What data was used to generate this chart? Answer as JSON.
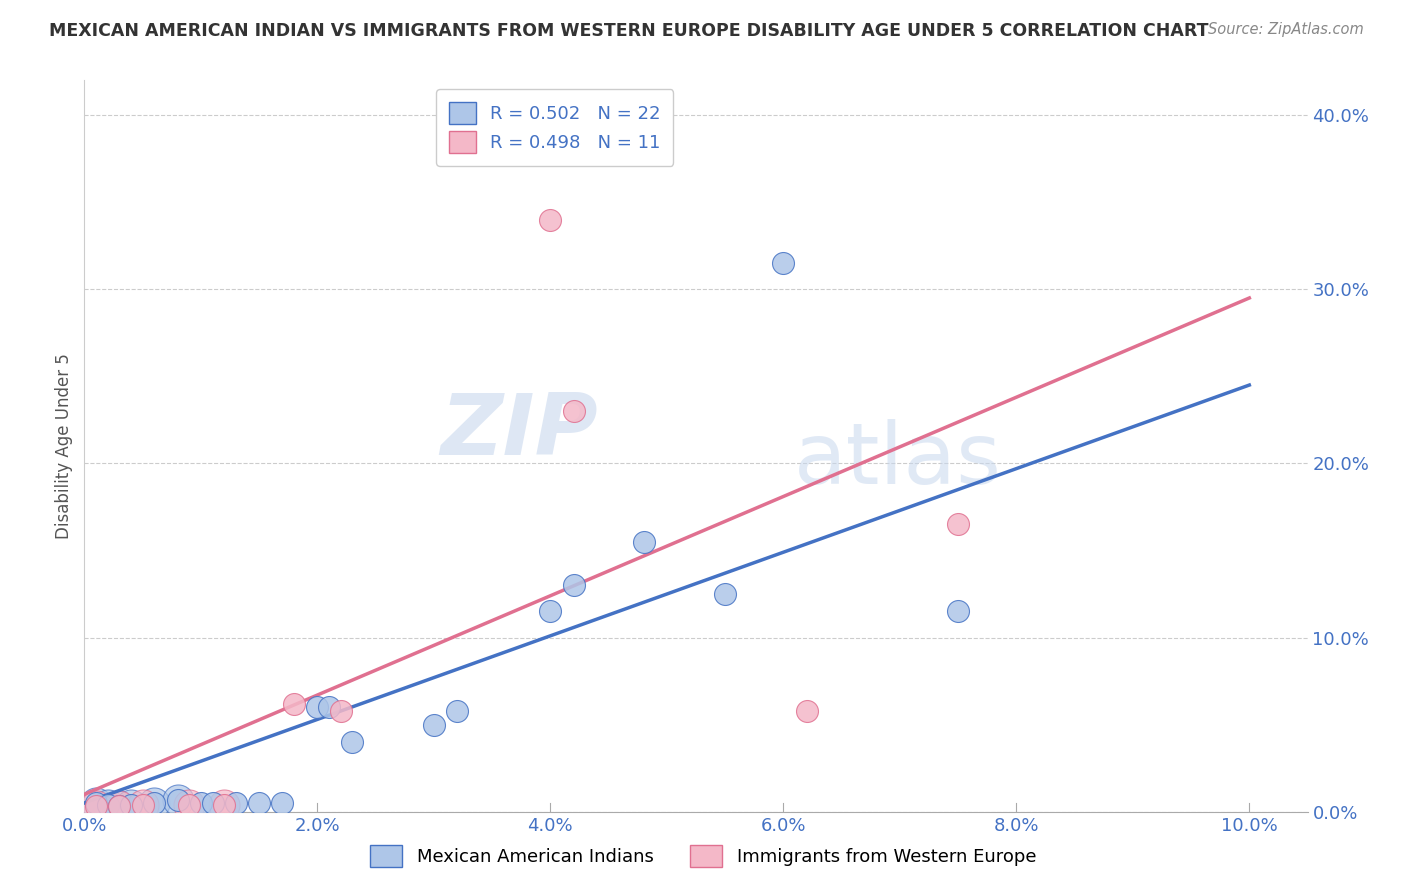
{
  "title": "MEXICAN AMERICAN INDIAN VS IMMIGRANTS FROM WESTERN EUROPE DISABILITY AGE UNDER 5 CORRELATION CHART",
  "source": "Source: ZipAtlas.com",
  "ylabel": "Disability Age Under 5",
  "legend_blue_label": "Mexican American Indians",
  "legend_pink_label": "Immigrants from Western Europe",
  "R_blue": 0.502,
  "N_blue": 22,
  "R_pink": 0.498,
  "N_pink": 11,
  "blue_color": "#aec6e8",
  "blue_line_color": "#4472c4",
  "pink_color": "#f4b8c8",
  "pink_line_color": "#e07090",
  "blue_scatter": [
    [
      0.001,
      0.005
    ],
    [
      0.002,
      0.004
    ],
    [
      0.003,
      0.003
    ],
    [
      0.004,
      0.004
    ],
    [
      0.006,
      0.005
    ],
    [
      0.008,
      0.007
    ],
    [
      0.01,
      0.005
    ],
    [
      0.011,
      0.005
    ],
    [
      0.013,
      0.005
    ],
    [
      0.015,
      0.005
    ],
    [
      0.017,
      0.005
    ],
    [
      0.02,
      0.06
    ],
    [
      0.021,
      0.06
    ],
    [
      0.023,
      0.04
    ],
    [
      0.03,
      0.05
    ],
    [
      0.032,
      0.058
    ],
    [
      0.04,
      0.115
    ],
    [
      0.042,
      0.13
    ],
    [
      0.048,
      0.155
    ],
    [
      0.055,
      0.125
    ],
    [
      0.06,
      0.315
    ],
    [
      0.075,
      0.115
    ]
  ],
  "pink_scatter": [
    [
      0.001,
      0.003
    ],
    [
      0.003,
      0.003
    ],
    [
      0.005,
      0.004
    ],
    [
      0.009,
      0.004
    ],
    [
      0.012,
      0.004
    ],
    [
      0.018,
      0.062
    ],
    [
      0.022,
      0.058
    ],
    [
      0.04,
      0.34
    ],
    [
      0.042,
      0.23
    ],
    [
      0.062,
      0.058
    ],
    [
      0.075,
      0.165
    ]
  ],
  "blue_line_x": [
    0.0,
    0.1
  ],
  "blue_line_y": [
    0.005,
    0.245
  ],
  "pink_line_x": [
    0.0,
    0.1
  ],
  "pink_line_y": [
    0.01,
    0.295
  ],
  "watermark_zip": "ZIP",
  "watermark_atlas": "atlas",
  "xlim": [
    0.0,
    0.105
  ],
  "ylim": [
    0.0,
    0.42
  ],
  "x_ticks": [
    0.0,
    0.02,
    0.04,
    0.06,
    0.08,
    0.1
  ],
  "y_ticks_right": [
    0.0,
    0.1,
    0.2,
    0.3,
    0.4
  ]
}
